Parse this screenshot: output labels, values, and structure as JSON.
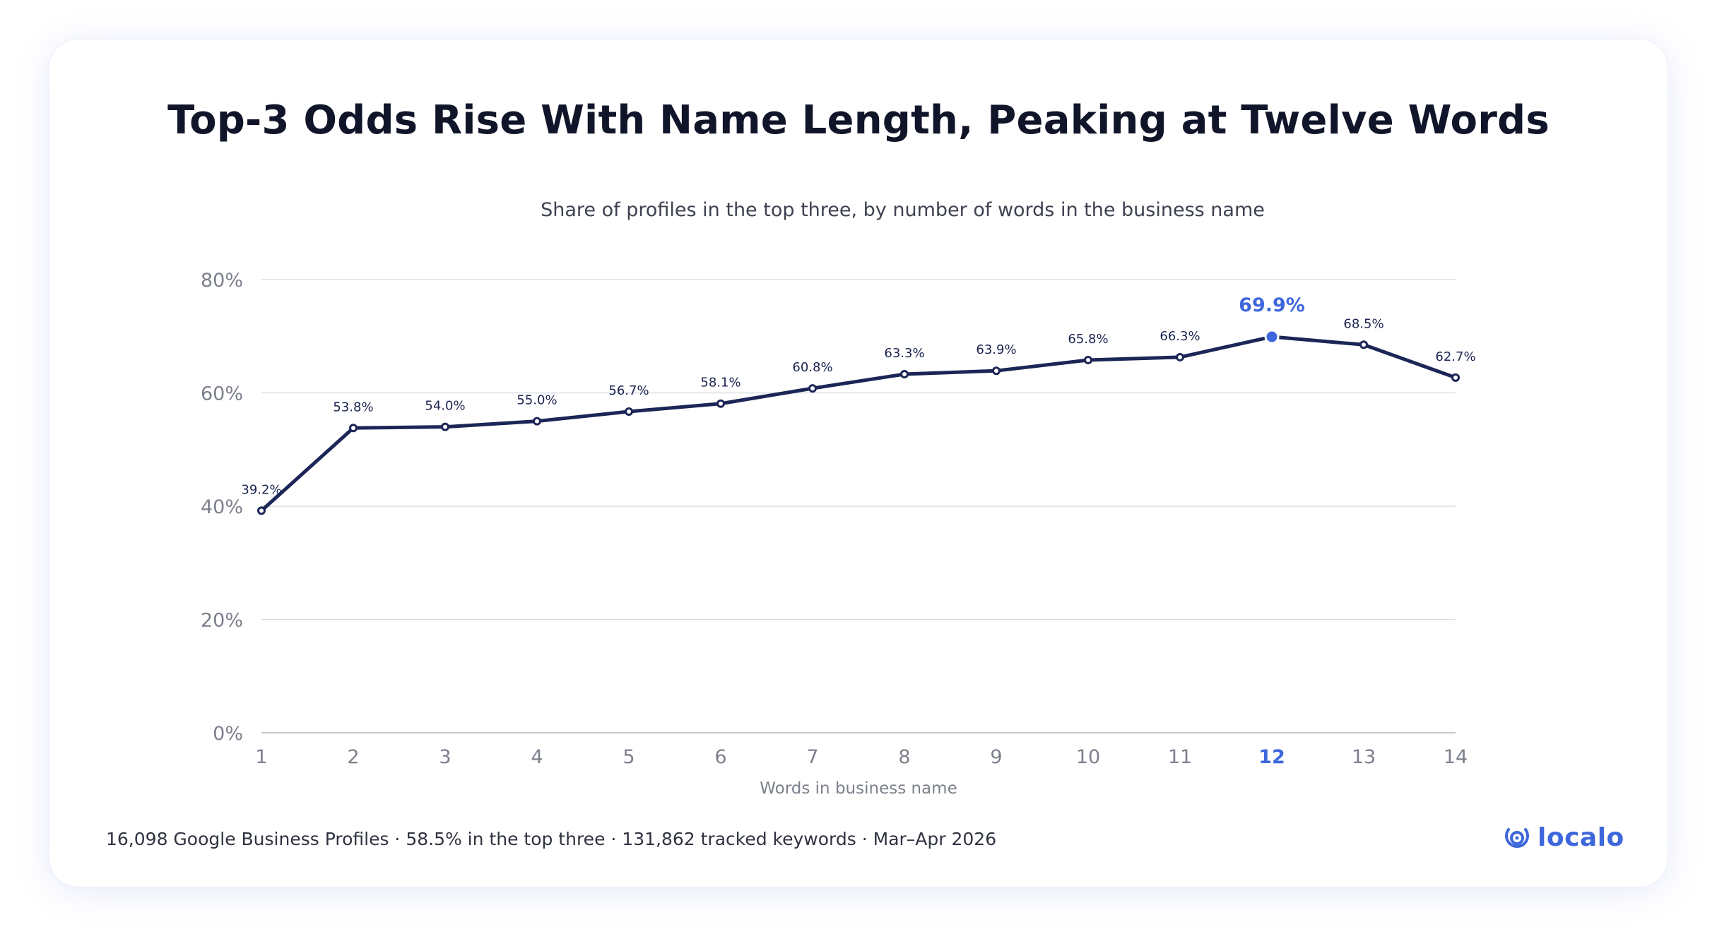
{
  "chart_data": {
    "type": "line",
    "title": "Top-3 Odds Rise With Name Length, Peaking at Twelve Words",
    "subtitle": "Share of profiles in the top three, by number of words in the business name",
    "xlabel": "Words in business name",
    "ylabel": "",
    "x": [
      1,
      2,
      3,
      4,
      5,
      6,
      7,
      8,
      9,
      10,
      11,
      12,
      13,
      14
    ],
    "x_tick_labels": [
      "1",
      "2",
      "3",
      "4",
      "5",
      "6",
      "7",
      "8",
      "9",
      "10",
      "11",
      "12",
      "13",
      "14"
    ],
    "y_tick_labels": [
      "0%",
      "20%",
      "40%",
      "60%",
      "80%"
    ],
    "y_ticks": [
      0,
      20,
      40,
      60,
      80
    ],
    "ylim": [
      0,
      80
    ],
    "grid": true,
    "series": [
      {
        "values": [
          39.2,
          53.8,
          54.0,
          55.0,
          56.7,
          58.1,
          60.8,
          63.3,
          63.9,
          65.8,
          66.3,
          69.9,
          68.5,
          62.7
        ],
        "labels": [
          "39.2%",
          "53.8%",
          "54.0%",
          "55.0%",
          "56.7%",
          "58.1%",
          "60.8%",
          "63.3%",
          "63.9%",
          "65.8%",
          "66.3%",
          "69.9%",
          "68.5%",
          "62.7%"
        ],
        "color": "#1c2656"
      }
    ],
    "highlight_index": 11,
    "highlight_color": "#3e67dc"
  },
  "footer": {
    "text": "16,098 Google Business Profiles · 58.5% in the top three · 131,862 tracked keywords · Mar–Apr 2026"
  },
  "brand": {
    "name": "localo",
    "icon": "localo-logo-icon",
    "color": "#3e67dc"
  }
}
